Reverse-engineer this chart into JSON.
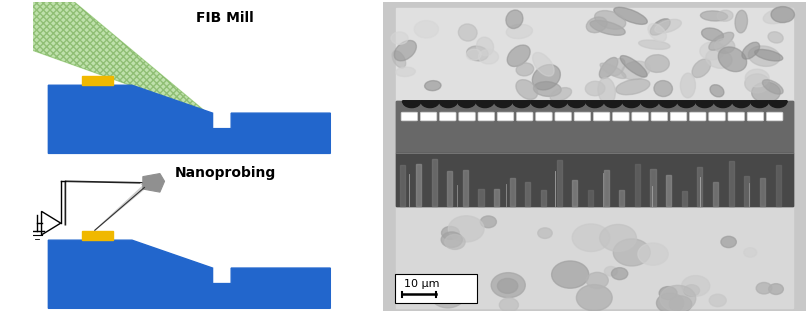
{
  "fig_width": 8.1,
  "fig_height": 3.13,
  "dpi": 100,
  "bg_color": "#ffffff",
  "left_panel": {
    "blue_color": "#2266cc",
    "yellow_color": "#f0b800",
    "green_color": "#aad890",
    "green_edge": "#70a850",
    "fib_label": "FIB Mill",
    "nano_label": "Nanoprobing",
    "label_fontsize": 10,
    "label_fontweight": "bold"
  },
  "right_panel": {
    "scale_bar_text": "10 μm",
    "scale_bar_fontsize": 8,
    "outer_bg": "#d8d8d8",
    "grain_top_color": "#e8e8e0",
    "grain_bot_color": "#d0d0c8",
    "dark_upper_color": "#606060",
    "dark_lower_color": "#505050",
    "contact_color": "#ffffff",
    "scallop_color": "#1a1a1a"
  }
}
